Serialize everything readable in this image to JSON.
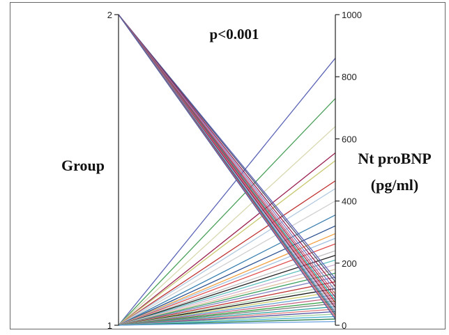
{
  "chart_data": {
    "type": "line",
    "subtype": "parallel-coordinates",
    "annotation": "p<0.001",
    "left_axis": {
      "label": "Group",
      "ticks": [
        "1",
        "2"
      ],
      "range": [
        1,
        2
      ]
    },
    "right_axis": {
      "label_lines": [
        "Nt proBNP",
        "(pg/ml)"
      ],
      "ticks": [
        "0",
        "200",
        "400",
        "600",
        "800",
        "1000"
      ],
      "range": [
        0,
        1000
      ]
    },
    "grid": false,
    "legend": "none",
    "series": [
      {
        "group": 1,
        "value": 860,
        "color": "#5a63b5"
      },
      {
        "group": 1,
        "value": 730,
        "color": "#4aa05a"
      },
      {
        "group": 1,
        "value": 640,
        "color": "#d8d8b0"
      },
      {
        "group": 1,
        "value": 555,
        "color": "#9a2050"
      },
      {
        "group": 1,
        "value": 530,
        "color": "#c8c870"
      },
      {
        "group": 1,
        "value": 465,
        "color": "#c03030"
      },
      {
        "group": 1,
        "value": 440,
        "color": "#b0c8e0"
      },
      {
        "group": 1,
        "value": 400,
        "color": "#d0d0d0"
      },
      {
        "group": 1,
        "value": 355,
        "color": "#3a80b0"
      },
      {
        "group": 1,
        "value": 320,
        "color": "#2a5090"
      },
      {
        "group": 1,
        "value": 295,
        "color": "#f0a040"
      },
      {
        "group": 1,
        "value": 280,
        "color": "#a0c0e0"
      },
      {
        "group": 1,
        "value": 262,
        "color": "#e05050"
      },
      {
        "group": 1,
        "value": 240,
        "color": "#c0c0c0"
      },
      {
        "group": 1,
        "value": 225,
        "color": "#222222"
      },
      {
        "group": 1,
        "value": 210,
        "color": "#60c0c0"
      },
      {
        "group": 1,
        "value": 195,
        "color": "#d0b0d0"
      },
      {
        "group": 1,
        "value": 180,
        "color": "#e0c0a0"
      },
      {
        "group": 1,
        "value": 168,
        "color": "#3aa060"
      },
      {
        "group": 1,
        "value": 155,
        "color": "#8080c0"
      },
      {
        "group": 1,
        "value": 140,
        "color": "#c03030"
      },
      {
        "group": 1,
        "value": 128,
        "color": "#b0d0b0"
      },
      {
        "group": 1,
        "value": 118,
        "color": "#111111"
      },
      {
        "group": 1,
        "value": 108,
        "color": "#d0d070"
      },
      {
        "group": 1,
        "value": 98,
        "color": "#60a0d0"
      },
      {
        "group": 1,
        "value": 88,
        "color": "#c06080"
      },
      {
        "group": 1,
        "value": 78,
        "color": "#30a040"
      },
      {
        "group": 1,
        "value": 70,
        "color": "#808080"
      },
      {
        "group": 1,
        "value": 60,
        "color": "#2aa0a0"
      },
      {
        "group": 1,
        "value": 52,
        "color": "#e08080"
      },
      {
        "group": 1,
        "value": 44,
        "color": "#5050a0"
      },
      {
        "group": 1,
        "value": 36,
        "color": "#a0d0a0"
      },
      {
        "group": 1,
        "value": 28,
        "color": "#40b0d0"
      },
      {
        "group": 1,
        "value": 20,
        "color": "#2a8050"
      },
      {
        "group": 1,
        "value": 12,
        "color": "#6aa0e0"
      },
      {
        "group": 2,
        "value": 150,
        "color": "#5a63b5"
      },
      {
        "group": 2,
        "value": 140,
        "color": "#505070"
      },
      {
        "group": 2,
        "value": 125,
        "color": "#9a2050"
      },
      {
        "group": 2,
        "value": 112,
        "color": "#8080c0"
      },
      {
        "group": 2,
        "value": 100,
        "color": "#c06080"
      },
      {
        "group": 2,
        "value": 90,
        "color": "#a03050"
      },
      {
        "group": 2,
        "value": 80,
        "color": "#2aa0a0"
      },
      {
        "group": 2,
        "value": 72,
        "color": "#c03030"
      },
      {
        "group": 2,
        "value": 64,
        "color": "#d070a0"
      },
      {
        "group": 2,
        "value": 56,
        "color": "#802040"
      },
      {
        "group": 2,
        "value": 48,
        "color": "#b0b0d0"
      },
      {
        "group": 2,
        "value": 40,
        "color": "#3a80b0"
      },
      {
        "group": 2,
        "value": 33,
        "color": "#606060"
      },
      {
        "group": 2,
        "value": 26,
        "color": "#e06080"
      },
      {
        "group": 2,
        "value": 20,
        "color": "#5060a0"
      }
    ]
  }
}
